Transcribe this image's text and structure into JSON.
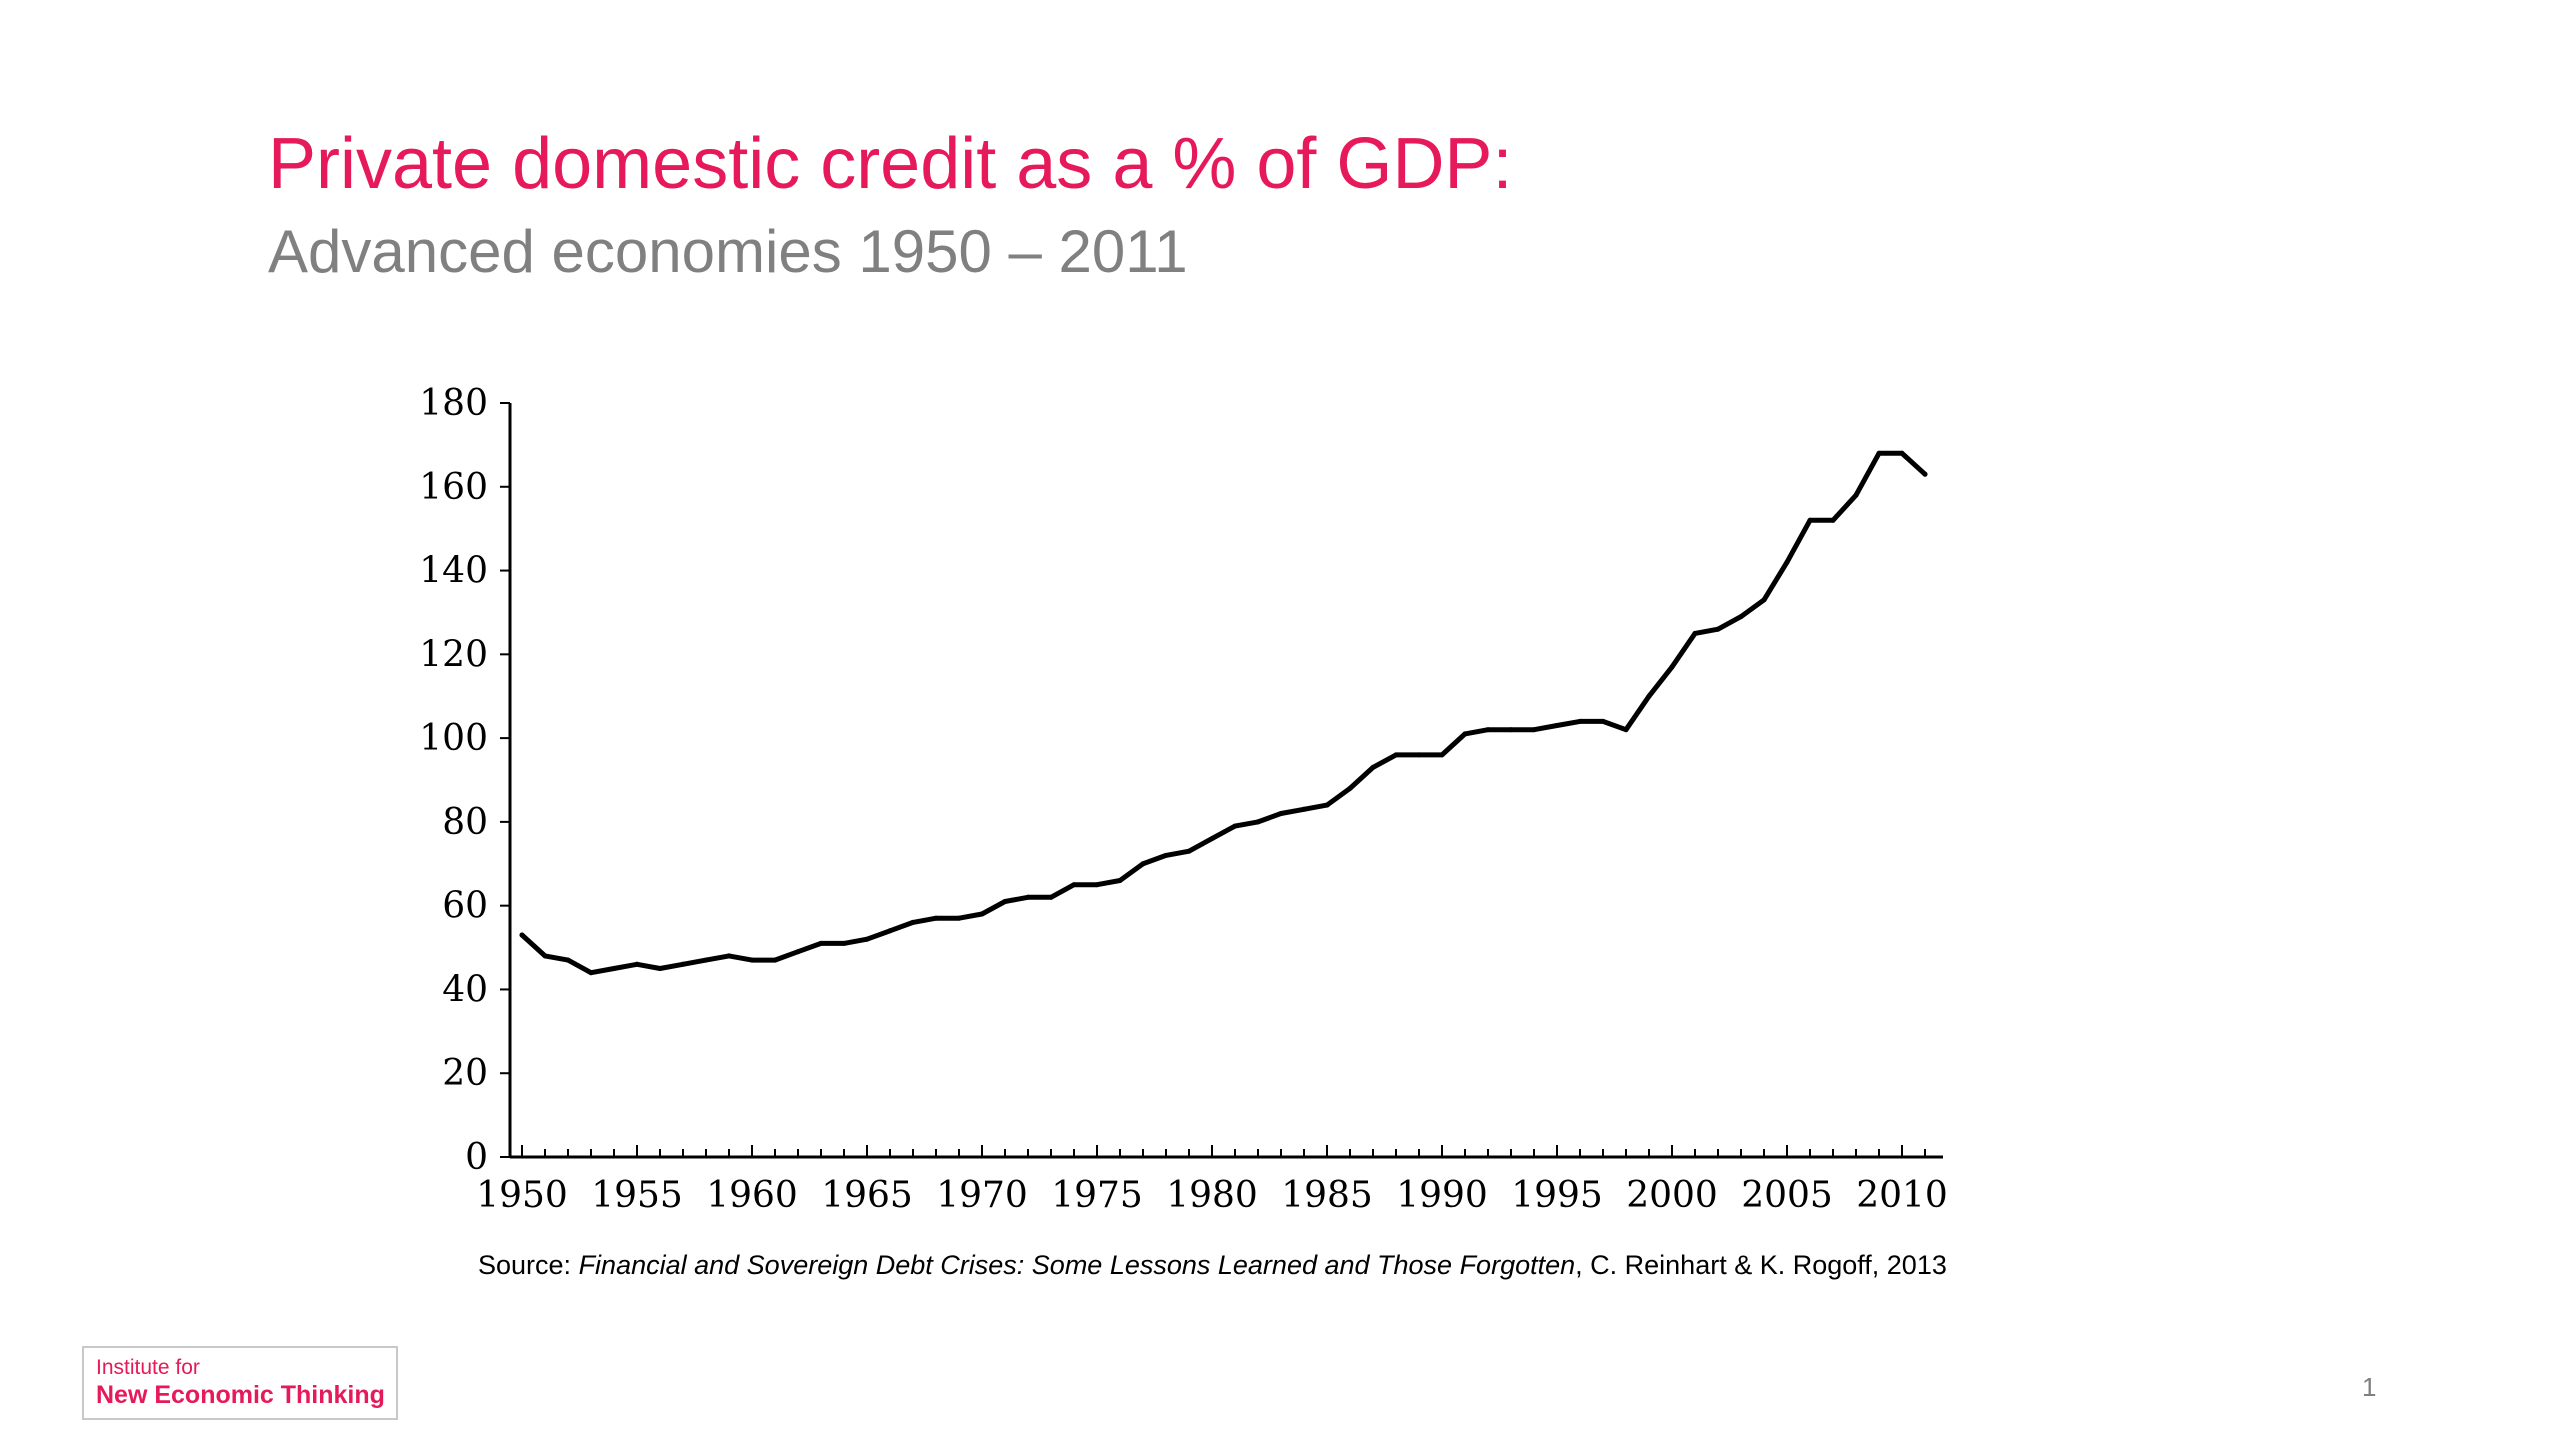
{
  "slide": {
    "title": "Private domestic credit as a % of GDP:",
    "subtitle": "Advanced economies 1950 – 2011",
    "source_prefix": "Source: ",
    "source_title": "Financial and Sovereign Debt Crises: Some Lessons Learned and Those Forgotten",
    "source_suffix": ", C. Reinhart & K.  Rogoff, 2013",
    "logo_line1": "Institute for",
    "logo_line2": "New Economic Thinking",
    "page_number": "1",
    "colors": {
      "title": "#e6195a",
      "subtitle": "#808080",
      "line": "#000000"
    }
  },
  "chart_data": {
    "type": "line",
    "title": "",
    "xlabel": "",
    "ylabel": "",
    "xlim": [
      1950,
      2011
    ],
    "ylim": [
      0,
      180
    ],
    "grid": false,
    "y_ticks": [
      "0",
      "20",
      "40",
      "60",
      "80",
      "100",
      "120",
      "140",
      "160",
      "180"
    ],
    "x_ticks": [
      "1950",
      "1955",
      "1960",
      "1965",
      "1970",
      "1975",
      "1980",
      "1985",
      "1990",
      "1995",
      "2000",
      "2005",
      "2010"
    ],
    "x": [
      1950,
      1951,
      1952,
      1953,
      1954,
      1955,
      1956,
      1957,
      1958,
      1959,
      1960,
      1961,
      1962,
      1963,
      1964,
      1965,
      1966,
      1967,
      1968,
      1969,
      1970,
      1971,
      1972,
      1973,
      1974,
      1975,
      1976,
      1977,
      1978,
      1979,
      1980,
      1981,
      1982,
      1983,
      1984,
      1985,
      1986,
      1987,
      1988,
      1989,
      1990,
      1991,
      1992,
      1993,
      1994,
      1995,
      1996,
      1997,
      1998,
      1999,
      2000,
      2001,
      2002,
      2003,
      2004,
      2005,
      2006,
      2007,
      2008,
      2009,
      2010,
      2011
    ],
    "series": [
      {
        "values": [
          53,
          48,
          47,
          44,
          45,
          46,
          45,
          46,
          47,
          48,
          47,
          47,
          49,
          51,
          51,
          52,
          54,
          56,
          57,
          57,
          58,
          61,
          62,
          62,
          65,
          65,
          66,
          70,
          72,
          73,
          76,
          79,
          80,
          82,
          83,
          84,
          88,
          93,
          96,
          96,
          96,
          101,
          102,
          102,
          102,
          103,
          104,
          104,
          102,
          110,
          117,
          125,
          126,
          129,
          133,
          142,
          152,
          152,
          158,
          168,
          168,
          163
        ]
      }
    ]
  }
}
